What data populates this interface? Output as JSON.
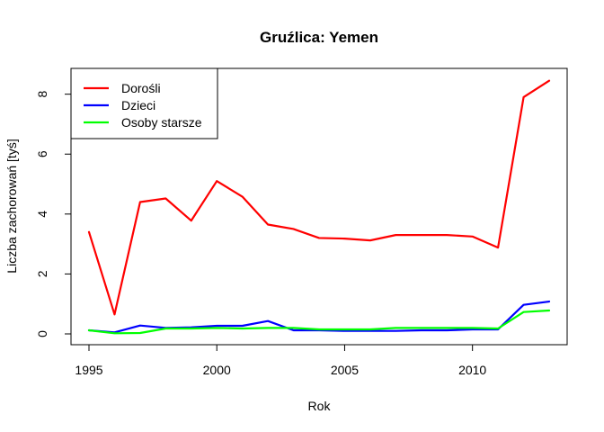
{
  "chart_data": {
    "type": "line",
    "title": "Gruźlica: Yemen",
    "xlabel": "Rok",
    "ylabel": "Liczba zachorowań [tyś]",
    "xlim": [
      1995,
      2013
    ],
    "ylim": [
      0,
      8.4
    ],
    "xticks": [
      "1995",
      "2000",
      "2005",
      "2010"
    ],
    "yticks": [
      "0",
      "2",
      "4",
      "6",
      "8"
    ],
    "legend_position": "top-left",
    "x": [
      1995,
      1996,
      1997,
      1998,
      1999,
      2000,
      2001,
      2002,
      2003,
      2004,
      2005,
      2006,
      2007,
      2008,
      2009,
      2010,
      2011,
      2012,
      2013
    ],
    "series": [
      {
        "name": "Dorośli",
        "color": "#ff0000",
        "values": [
          3.4,
          0.65,
          4.4,
          4.52,
          3.78,
          5.1,
          4.58,
          3.65,
          3.5,
          3.2,
          3.18,
          3.12,
          3.3,
          3.3,
          3.3,
          3.25,
          2.88,
          7.9,
          8.45
        ]
      },
      {
        "name": "Dzieci",
        "color": "#0000ff",
        "values": [
          0.12,
          0.05,
          0.28,
          0.2,
          0.22,
          0.27,
          0.27,
          0.43,
          0.12,
          0.12,
          0.1,
          0.1,
          0.1,
          0.12,
          0.12,
          0.15,
          0.15,
          0.97,
          1.08
        ]
      },
      {
        "name": "Osoby starsze",
        "color": "#00ff00",
        "values": [
          0.12,
          0.02,
          0.03,
          0.18,
          0.18,
          0.2,
          0.18,
          0.2,
          0.2,
          0.15,
          0.15,
          0.15,
          0.2,
          0.2,
          0.2,
          0.2,
          0.18,
          0.73,
          0.78
        ]
      }
    ]
  }
}
